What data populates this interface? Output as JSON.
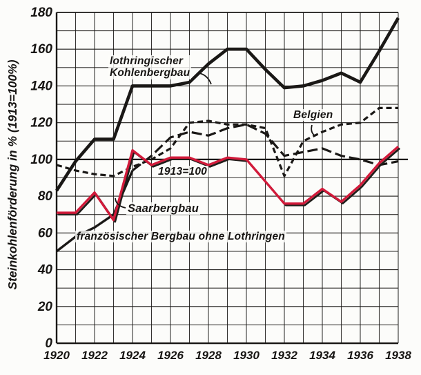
{
  "chart_data": {
    "type": "line",
    "title": "",
    "ylabel": "Steinkohlenförderung in % (1913=100%)",
    "xlabel": "",
    "ylim": [
      0,
      180
    ],
    "y_ticks": [
      0,
      20,
      40,
      60,
      80,
      100,
      120,
      140,
      160,
      180
    ],
    "y_minor_grid_step": 10,
    "x": [
      1920,
      1921,
      1922,
      1923,
      1924,
      1925,
      1926,
      1927,
      1928,
      1929,
      1930,
      1931,
      1932,
      1933,
      1934,
      1935,
      1936,
      1937,
      1938
    ],
    "x_tick_labels": [
      "1920",
      "1922",
      "1924",
      "1926",
      "1928",
      "1930",
      "1932",
      "1934",
      "1936",
      "1938"
    ],
    "grid": "on (every year vertical, every 10% horizontal)",
    "legend_position": "inline-annotations",
    "reference_line": {
      "value": 100,
      "label": "1913=100"
    },
    "ink_color": "#1a1816",
    "accent_color": "#d21a3a",
    "series": [
      {
        "name": "lothringischer Kohlenbergbau",
        "style": "solid-thick",
        "color": "#1a1816",
        "values": [
          83,
          99,
          111,
          111,
          140,
          140,
          140,
          142,
          152,
          160,
          160,
          149,
          139,
          140,
          143,
          147,
          142,
          159,
          177
        ]
      },
      {
        "name": "Belgien",
        "style": "short-dash",
        "color": "#1a1816",
        "values": [
          97,
          94,
          92,
          91,
          96,
          100,
          106,
          120,
          121,
          119,
          119,
          117,
          91,
          110,
          115,
          119,
          120,
          128,
          128
        ]
      },
      {
        "name": "Saarbergbau",
        "style": "solid-red-with-black-offset-print",
        "color": "#d21a3a",
        "values": [
          71,
          71,
          82,
          67,
          105,
          97,
          101,
          101,
          97,
          101,
          100,
          88,
          76,
          76,
          84,
          77,
          86,
          98,
          107
        ]
      },
      {
        "name": "französischer Bergbau ohne Lothringen",
        "style": "solid-until-1924-then-long-dash",
        "dash_from_year": 1924,
        "color": "#1a1816",
        "values": [
          50,
          58,
          63,
          70,
          94,
          102,
          112,
          115,
          113,
          117,
          119,
          114,
          102,
          104,
          106,
          102,
          100,
          97,
          99
        ]
      }
    ],
    "labels": {
      "lothringisch_line1": "lothringischer",
      "lothringisch_line2": "Kohlenbergbau",
      "belgien": "Belgien",
      "reference": "1913=100",
      "saar": "Saarbergbau",
      "franzoesisch": "französischer Bergbau ohne Lothringen"
    }
  }
}
